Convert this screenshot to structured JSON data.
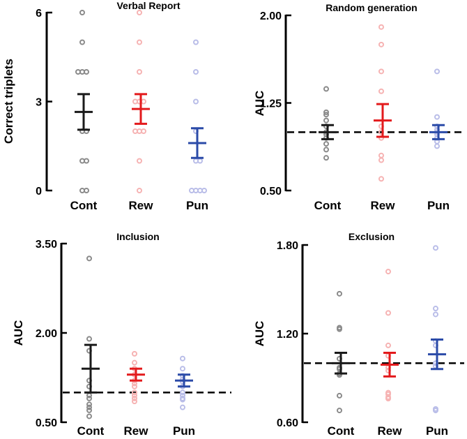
{
  "chart_data": [
    {
      "type": "scatter",
      "title": "Verbal Report",
      "ylabel": "Correct triplets",
      "ylim": [
        0,
        6
      ],
      "yticks": [
        "0",
        "3",
        "6"
      ],
      "ytick_values": [
        0,
        3,
        6
      ],
      "categories": [
        "Cont",
        "Rew",
        "Pun"
      ],
      "colors": [
        "#1a1a1a",
        "#e31a1c",
        "#2b4ba8"
      ],
      "point_colors": [
        "#8a8a8a",
        "#f6b3b3",
        "#b9bde8"
      ],
      "reference_line": null,
      "series": [
        {
          "name": "Cont",
          "mean": 2.65,
          "error": 0.6,
          "points": [
            6,
            5,
            4,
            4,
            4,
            2,
            2,
            1,
            1,
            0,
            0
          ]
        },
        {
          "name": "Rew",
          "mean": 2.75,
          "error": 0.5,
          "points": [
            6,
            5,
            4,
            3,
            3,
            3,
            2,
            2,
            2,
            1,
            0
          ]
        },
        {
          "name": "Pun",
          "mean": 1.6,
          "error": 0.5,
          "points": [
            5,
            4,
            3,
            2,
            1,
            1,
            0,
            0,
            0,
            0
          ]
        }
      ]
    },
    {
      "type": "scatter",
      "title": "Random generation",
      "ylabel": "AUC",
      "ylim": [
        0.5,
        2.0
      ],
      "yticks": [
        "0.50",
        "1.25",
        "2.00"
      ],
      "ytick_values": [
        0.5,
        1.25,
        2.0
      ],
      "categories": [
        "Cont",
        "Rew",
        "Pun"
      ],
      "colors": [
        "#1a1a1a",
        "#e31a1c",
        "#2b4ba8"
      ],
      "point_colors": [
        "#8a8a8a",
        "#f6b3b3",
        "#b9bde8"
      ],
      "reference_line": 1.0,
      "series": [
        {
          "name": "Cont",
          "mean": 1.0,
          "error": 0.06,
          "points": [
            1.37,
            1.17,
            1.15,
            1.1,
            1.05,
            1.0,
            0.98,
            0.95,
            0.9,
            0.85,
            0.78
          ]
        },
        {
          "name": "Rew",
          "mean": 1.1,
          "error": 0.14,
          "points": [
            1.9,
            1.75,
            1.52,
            1.35,
            1.05,
            1.0,
            0.95,
            0.8,
            0.76,
            0.6
          ]
        },
        {
          "name": "Pun",
          "mean": 1.0,
          "error": 0.06,
          "points": [
            1.52,
            1.13,
            1.05,
            1.02,
            1.0,
            0.98,
            0.95,
            0.92,
            0.88
          ]
        }
      ]
    },
    {
      "type": "scatter",
      "title": "Inclusion",
      "ylabel": "AUC",
      "ylim": [
        0.5,
        3.5
      ],
      "yticks": [
        "0.50",
        "2.00",
        "3.50"
      ],
      "ytick_values": [
        0.5,
        2.0,
        3.5
      ],
      "categories": [
        "Cont",
        "Rew",
        "Pun"
      ],
      "colors": [
        "#1a1a1a",
        "#e31a1c",
        "#2b4ba8"
      ],
      "point_colors": [
        "#8a8a8a",
        "#f6b3b3",
        "#b9bde8"
      ],
      "reference_line": 1.0,
      "series": [
        {
          "name": "Cont",
          "mean": 1.4,
          "error": 0.4,
          "points": [
            3.25,
            1.9,
            1.7,
            1.2,
            1.1,
            0.95,
            0.9,
            0.8,
            0.75,
            0.7,
            0.6
          ]
        },
        {
          "name": "Rew",
          "mean": 1.3,
          "error": 0.1,
          "points": [
            1.65,
            1.5,
            1.4,
            1.3,
            1.2,
            1.15,
            1.1,
            1.0,
            0.95,
            0.9,
            0.85
          ]
        },
        {
          "name": "Pun",
          "mean": 1.2,
          "error": 0.1,
          "points": [
            1.57,
            1.4,
            1.28,
            1.22,
            1.18,
            1.1,
            1.0,
            0.95,
            0.9,
            0.88,
            0.75
          ]
        }
      ]
    },
    {
      "type": "scatter",
      "title": "Exclusion",
      "ylabel": "AUC",
      "ylim": [
        0.6,
        1.8
      ],
      "yticks": [
        "0.60",
        "1.20",
        "1.80"
      ],
      "ytick_values": [
        0.6,
        1.2,
        1.8
      ],
      "categories": [
        "Cont",
        "Rew",
        "Pun"
      ],
      "colors": [
        "#1a1a1a",
        "#e31a1c",
        "#2b4ba8"
      ],
      "point_colors": [
        "#8a8a8a",
        "#f6b3b3",
        "#b9bde8"
      ],
      "reference_line": 1.0,
      "series": [
        {
          "name": "Cont",
          "mean": 1.0,
          "error": 0.07,
          "points": [
            1.47,
            1.24,
            1.23,
            1.03,
            0.97,
            0.96,
            0.93,
            0.92,
            0.78,
            0.68
          ]
        },
        {
          "name": "Rew",
          "mean": 0.99,
          "error": 0.08,
          "points": [
            1.62,
            1.34,
            1.12,
            1.05,
            0.97,
            0.95,
            0.8,
            0.79,
            0.77,
            0.76
          ]
        },
        {
          "name": "Pun",
          "mean": 1.06,
          "error": 0.1,
          "points": [
            1.78,
            1.37,
            1.33,
            1.15,
            1.12,
            1.0,
            0.98,
            0.69,
            0.68
          ]
        }
      ]
    }
  ]
}
